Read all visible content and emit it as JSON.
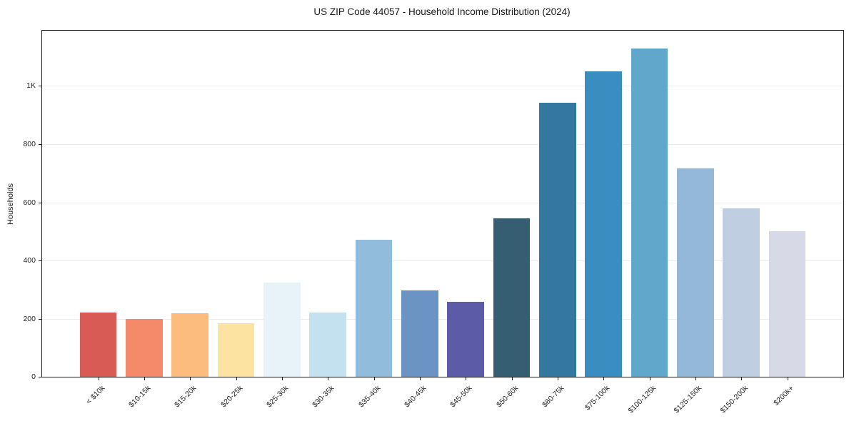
{
  "title": "US ZIP Code 44057 - Household Income Distribution (2024)",
  "chart_data": {
    "type": "bar",
    "title": "US ZIP Code 44057 - Household Income Distribution (2024)",
    "xlabel": "",
    "ylabel": "Households",
    "categories": [
      "< $10k",
      "$10-15k",
      "$15-20k",
      "$20-25k",
      "$25-30k",
      "$30-35k",
      "$35-40k",
      "$40-45k",
      "$45-50k",
      "$50-60k",
      "$60-75k",
      "$75-100k",
      "$100-125k",
      "$125-150k",
      "$150-200k",
      "$200k+"
    ],
    "values": [
      220,
      198,
      218,
      185,
      324,
      220,
      470,
      296,
      258,
      545,
      942,
      1050,
      1130,
      716,
      578,
      500
    ],
    "bar_colors": [
      "#d85c55",
      "#f58a6b",
      "#fcbc7e",
      "#fce3a2",
      "#e7f3f7",
      "#c3e1ee",
      "#92bcdb",
      "#6b93c4",
      "#5c5ba7",
      "#365e73",
      "#35789f",
      "#398dc1",
      "#60a7cb",
      "#94b8d8",
      "#c0cee2",
      "#d7d9e6"
    ],
    "ylim": [
      0,
      1190
    ],
    "yticks": [
      {
        "value": 0,
        "label": "0"
      },
      {
        "value": 200,
        "label": "200"
      },
      {
        "value": 400,
        "label": "400"
      },
      {
        "value": 600,
        "label": "600"
      },
      {
        "value": 800,
        "label": "800"
      },
      {
        "value": 1000,
        "label": "1K"
      }
    ],
    "grid": "horizontal",
    "legend": "none",
    "axis_color": "#1b1b1b",
    "grid_color": "#ececec",
    "background_color": "#ffffff"
  }
}
